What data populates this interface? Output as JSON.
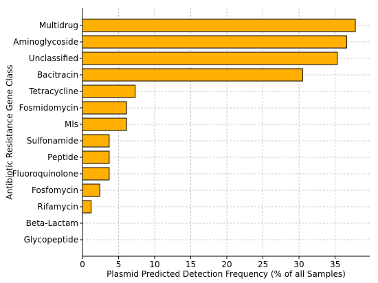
{
  "chart_data": {
    "type": "bar",
    "orientation": "horizontal",
    "categories": [
      "Multidrug",
      "Aminoglycoside",
      "Unclassified",
      "Bacitracin",
      "Tetracycline",
      "Fosmidomycin",
      "Mls",
      "Sulfonamide",
      "Peptide",
      "Fluoroquinolone",
      "Fosfomycin",
      "Rifamycin",
      "Beta-Lactam",
      "Glycopeptide"
    ],
    "values": [
      37.8,
      36.6,
      35.3,
      30.5,
      7.3,
      6.1,
      6.1,
      3.7,
      3.7,
      3.7,
      2.4,
      1.2,
      0,
      0
    ],
    "xlabel": "Plasmid Predicted Detection Frequency (% of all Samples)",
    "ylabel": "Antibiotic Resistance Gene Class",
    "xlim": [
      0,
      39.8
    ],
    "xticks": [
      "0",
      "5",
      "10",
      "15",
      "20",
      "25",
      "30",
      "35"
    ],
    "grid": true,
    "bar_color": "#FFB000",
    "edge_color": "#000000",
    "grid_color": "#b0b0b0"
  }
}
